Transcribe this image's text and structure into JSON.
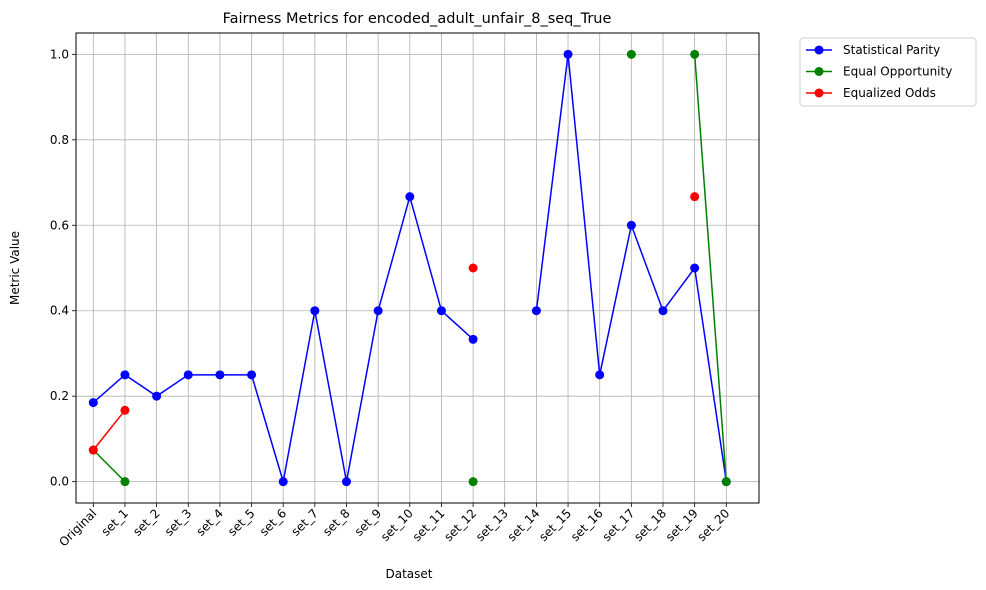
{
  "chart_data": {
    "type": "line",
    "title": "Fairness Metrics for encoded_adult_unfair_8_seq_True",
    "xlabel": "Dataset",
    "ylabel": "Metric Value",
    "ylim": [
      -0.05,
      1.05
    ],
    "yticks": [
      "0.0",
      "0.2",
      "0.4",
      "0.6",
      "0.8",
      "1.0"
    ],
    "grid": true,
    "legend_position": "outside-top-right",
    "categories": [
      "Original",
      "set_1",
      "set_2",
      "set_3",
      "set_4",
      "set_5",
      "set_6",
      "set_7",
      "set_8",
      "set_9",
      "set_10",
      "set_11",
      "set_12",
      "set_13",
      "set_14",
      "set_15",
      "set_16",
      "set_17",
      "set_18",
      "set_19",
      "set_20"
    ],
    "series": [
      {
        "name": "Statistical Parity",
        "color": "#0000ff",
        "values": [
          0.185,
          0.25,
          0.2,
          0.25,
          0.25,
          0.25,
          0.0,
          0.4,
          0.0,
          0.4,
          0.667,
          0.4,
          0.333,
          null,
          0.4,
          1.0,
          0.25,
          0.6,
          0.4,
          0.5,
          0.0
        ]
      },
      {
        "name": "Equal Opportunity",
        "color": "#008000",
        "values": [
          0.074,
          0.0,
          null,
          null,
          null,
          null,
          null,
          null,
          null,
          null,
          null,
          null,
          0.0,
          null,
          null,
          null,
          null,
          1.0,
          null,
          1.0,
          0.0
        ]
      },
      {
        "name": "Equalized Odds",
        "color": "#ff0000",
        "values": [
          0.074,
          0.167,
          null,
          null,
          null,
          null,
          null,
          null,
          null,
          null,
          null,
          null,
          0.5,
          null,
          null,
          null,
          null,
          null,
          null,
          0.667,
          null
        ]
      }
    ]
  }
}
